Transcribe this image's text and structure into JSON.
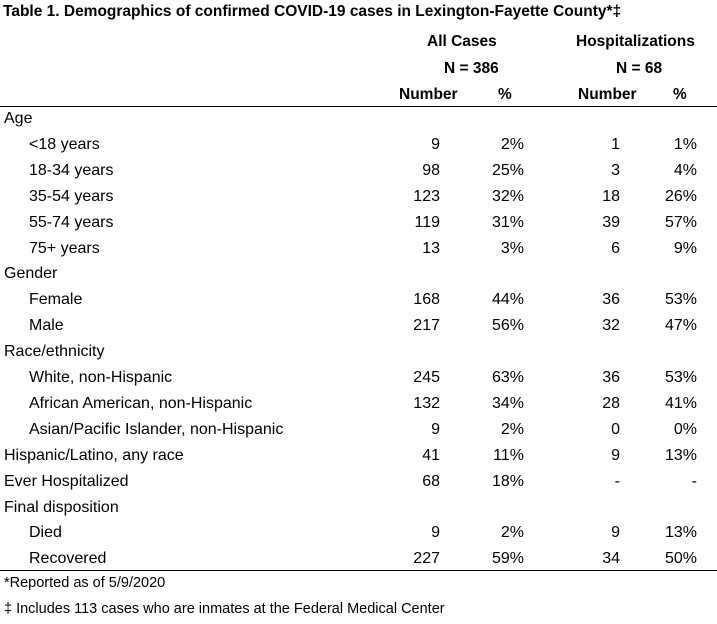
{
  "table": {
    "title": "Table 1. Demographics of confirmed COVID-19 cases in Lexington-Fayette County*‡",
    "groups": [
      {
        "name": "All Cases",
        "n": "N = 386"
      },
      {
        "name": "Hospitalizations",
        "n": "N = 68"
      }
    ],
    "columns": [
      "Number",
      "%",
      "Number",
      "%"
    ],
    "rows": [
      {
        "label": "Age",
        "indent": false,
        "values": [
          "",
          "",
          "",
          ""
        ]
      },
      {
        "label": "<18 years",
        "indent": true,
        "values": [
          "9",
          "2%",
          "1",
          "1%"
        ]
      },
      {
        "label": "18-34 years",
        "indent": true,
        "values": [
          "98",
          "25%",
          "3",
          "4%"
        ]
      },
      {
        "label": "35-54 years",
        "indent": true,
        "values": [
          "123",
          "32%",
          "18",
          "26%"
        ]
      },
      {
        "label": "55-74 years",
        "indent": true,
        "values": [
          "119",
          "31%",
          "39",
          "57%"
        ]
      },
      {
        "label": "75+ years",
        "indent": true,
        "values": [
          "13",
          "3%",
          "6",
          "9%"
        ]
      },
      {
        "label": "Gender",
        "indent": false,
        "values": [
          "",
          "",
          "",
          ""
        ]
      },
      {
        "label": "Female",
        "indent": true,
        "values": [
          "168",
          "44%",
          "36",
          "53%"
        ]
      },
      {
        "label": "Male",
        "indent": true,
        "values": [
          "217",
          "56%",
          "32",
          "47%"
        ]
      },
      {
        "label": "Race/ethnicity",
        "indent": false,
        "values": [
          "",
          "",
          "",
          ""
        ]
      },
      {
        "label": "White, non-Hispanic",
        "indent": true,
        "values": [
          "245",
          "63%",
          "36",
          "53%"
        ]
      },
      {
        "label": "African American, non-Hispanic",
        "indent": true,
        "values": [
          "132",
          "34%",
          "28",
          "41%"
        ]
      },
      {
        "label": "Asian/Pacific Islander, non-Hispanic",
        "indent": true,
        "values": [
          "9",
          "2%",
          "0",
          "0%"
        ]
      },
      {
        "label": "Hispanic/Latino, any race",
        "indent": false,
        "values": [
          "41",
          "11%",
          "9",
          "13%"
        ]
      },
      {
        "label": "Ever Hospitalized",
        "indent": false,
        "values": [
          "68",
          "18%",
          "-",
          "-"
        ]
      },
      {
        "label": "Final disposition",
        "indent": false,
        "values": [
          "",
          "",
          "",
          ""
        ]
      },
      {
        "label": "Died",
        "indent": true,
        "values": [
          "9",
          "2%",
          "9",
          "13%"
        ]
      },
      {
        "label": "Recovered",
        "indent": true,
        "values": [
          "227",
          "59%",
          "34",
          "50%"
        ]
      }
    ],
    "footnotes": [
      "*Reported as of 5/9/2020",
      "‡ Includes 113 cases who are inmates at the Federal Medical Center"
    ]
  }
}
